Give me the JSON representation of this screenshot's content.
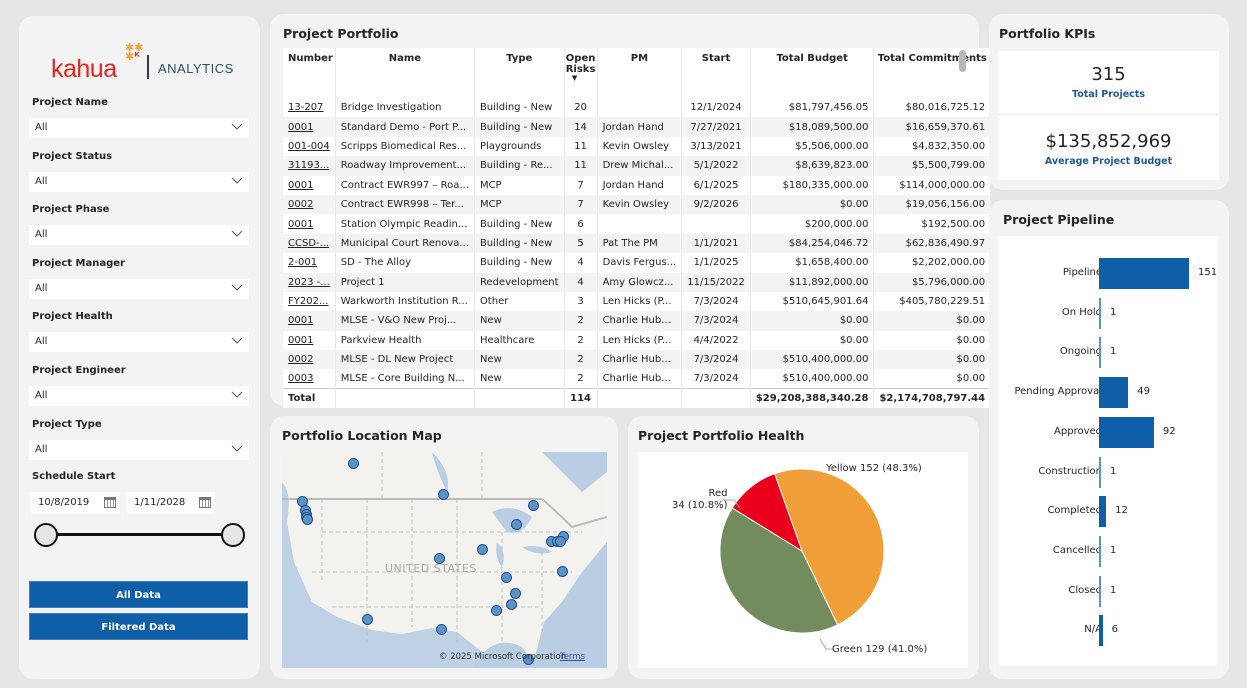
{
  "logo": {
    "brand": "kahua",
    "product": "ANALYTICS"
  },
  "filters": [
    {
      "label": "Project Name",
      "value": "All"
    },
    {
      "label": "Project Status",
      "value": "All"
    },
    {
      "label": "Project Phase",
      "value": "All"
    },
    {
      "label": "Project Manager",
      "value": "All"
    },
    {
      "label": "Project Health",
      "value": "All"
    },
    {
      "label": "Project Engineer",
      "value": "All"
    },
    {
      "label": "Project Type",
      "value": "All"
    }
  ],
  "schedule": {
    "label": "Schedule Start",
    "start": "10/8/2019",
    "end": "1/11/2028"
  },
  "buttons": {
    "all_data": "All Data",
    "filtered_data": "Filtered Data"
  },
  "portfolio": {
    "title": "Project Portfolio",
    "columns": [
      "Number",
      "Name",
      "Type",
      "Open Risks",
      "PM",
      "Start",
      "Total Budget",
      "Total Commitments"
    ],
    "rows": [
      [
        "13-207",
        "Bridge Investigation",
        "Building - New",
        "20",
        "",
        "12/1/2024",
        "$81,797,456.05",
        "$80,016,725.12"
      ],
      [
        "0001",
        "Standard Demo - Port P...",
        "Building - New",
        "14",
        "Jordan Hand",
        "7/27/2021",
        "$18,089,500.00",
        "$16,659,370.61"
      ],
      [
        "001-004",
        "Scripps Biomedical Res...",
        "Playgrounds",
        "11",
        "Kevin Owsley",
        "3/13/2021",
        "$5,506,000.00",
        "$4,832,350.00"
      ],
      [
        "31193...",
        "Roadway Improvement...",
        "Building - Re...",
        "11",
        "Drew Michal...",
        "5/1/2022",
        "$8,639,823.00",
        "$5,500,799.00"
      ],
      [
        "0001",
        "Contract EWR997 – Roa...",
        "MCP",
        "7",
        "Jordan Hand",
        "6/1/2025",
        "$180,335,000.00",
        "$114,000,000.00"
      ],
      [
        "0002",
        "Contract EWR998 – Ter...",
        "MCP",
        "7",
        "Kevin Owsley",
        "9/2/2026",
        "$0.00",
        "$19,056,156.00"
      ],
      [
        "0001",
        "Station Olympic Readin...",
        "Building - New",
        "6",
        "",
        "",
        "$200,000.00",
        "$192,500.00"
      ],
      [
        "CCSD-...",
        "Municipal Court Renova...",
        "Building - New",
        "5",
        "Pat The PM",
        "1/1/2021",
        "$84,254,046.72",
        "$62,836,490.97"
      ],
      [
        "2-001",
        "SD - The Alloy",
        "Building - New",
        "4",
        "Davis Fergus...",
        "1/1/2025",
        "$1,658,400.00",
        "$2,202,000.00"
      ],
      [
        "2023 -...",
        "Project 1",
        "Redevelopment",
        "4",
        "Amy Glowcz...",
        "11/15/2022",
        "$11,892,000.00",
        "$5,796,000.00"
      ],
      [
        "FY202...",
        "Warkworth Institution R...",
        "Other",
        "3",
        "Len Hicks (P...",
        "7/3/2024",
        "$510,645,901.64",
        "$405,780,229.51"
      ],
      [
        "0001",
        "MLSE -  V&O New Proj...",
        "New",
        "2",
        "Charlie Hub...",
        "7/3/2024",
        "$0.00",
        "$0.00"
      ],
      [
        "0001",
        "Parkview Health",
        "Healthcare",
        "2",
        "Len Hicks (P...",
        "4/4/2022",
        "$0.00",
        "$0.00"
      ],
      [
        "0002",
        "MLSE - DL New Project",
        "New",
        "2",
        "Charlie Hub...",
        "7/3/2024",
        "$510,400,000.00",
        "$0.00"
      ],
      [
        "0003",
        "MLSE - Core Building N...",
        "New",
        "2",
        "Charlie Hub...",
        "7/3/2024",
        "$510,400,000.00",
        "$0.00"
      ]
    ],
    "total": {
      "label": "Total",
      "open_risks": "114",
      "total_budget": "$29,208,388,340.28",
      "total_commitments": "$2,174,708,797.44"
    }
  },
  "kpis": {
    "title": "Portfolio KPIs",
    "total_projects": {
      "value": "315",
      "label": "Total Projects"
    },
    "avg_budget": {
      "value": "$135,852,969",
      "label": "Average Project Budget"
    }
  },
  "map": {
    "title": "Portfolio Location Map",
    "country_label": "UNITED STATES",
    "copyright": "© 2025 Microsoft Corporation",
    "terms": "Terms"
  },
  "chart_data": [
    {
      "type": "pie",
      "title": "Project Portfolio Health",
      "categories": [
        "Yellow",
        "Green",
        "Red"
      ],
      "values": [
        152,
        129,
        34
      ],
      "percents": [
        "48.3%",
        "41.0%",
        "10.8%"
      ],
      "colors": [
        "#f09f38",
        "#728c5e",
        "#e8001c"
      ],
      "labels": [
        "Yellow 152 (48.3%)",
        "Green 129 (41.0%)",
        "Red\n34 (10.8%)"
      ]
    },
    {
      "type": "bar",
      "orientation": "horizontal",
      "title": "Project Pipeline",
      "categories": [
        "Pipeline",
        "On Hold",
        "Ongoing",
        "Pending Approval",
        "Approved",
        "Construction",
        "Completed",
        "Cancelled",
        "Closed",
        "N/A"
      ],
      "values": [
        151,
        1,
        1,
        49,
        92,
        1,
        12,
        1,
        1,
        6
      ],
      "color": "#0f5ea8"
    }
  ]
}
